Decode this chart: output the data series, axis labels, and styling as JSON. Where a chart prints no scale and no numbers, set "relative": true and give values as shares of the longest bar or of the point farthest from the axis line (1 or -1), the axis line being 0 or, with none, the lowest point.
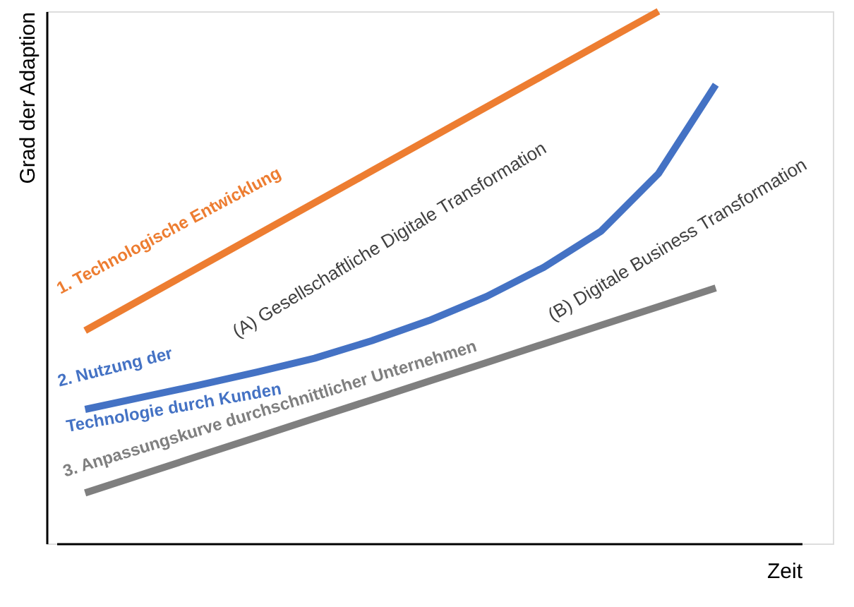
{
  "chart_data": {
    "type": "line",
    "relative": true,
    "xlabel": "Zeit",
    "ylabel": "Grad der Adaption",
    "categories": [
      null,
      null,
      null,
      null,
      null,
      null,
      null,
      null,
      null,
      null,
      null,
      null,
      null
    ],
    "tick_labels": false,
    "grid": false,
    "marker": "none",
    "line_style": "solid",
    "series": [
      {
        "name": "1. Technologische Entwicklung",
        "color": "#ed7d31",
        "values": [
          0.4,
          0.46,
          0.52,
          0.58,
          0.64,
          0.7,
          0.76,
          0.82,
          0.88,
          0.94,
          1.0,
          null,
          null
        ]
      },
      {
        "name": "2. Nutzung der Technologie durch Kunden",
        "color": "#4472c4",
        "values": [
          0.252,
          0.275,
          0.298,
          0.322,
          0.348,
          0.381,
          0.419,
          0.464,
          0.519,
          0.587,
          0.695,
          0.862,
          null
        ]
      },
      {
        "name": "3. Anpassungskurve durchschnittlicher Unternehmen",
        "color": "#7f7f7f",
        "values": [
          0.095,
          0.13,
          0.165,
          0.2,
          0.235,
          0.27,
          0.305,
          0.34,
          0.375,
          0.41,
          0.445,
          0.48,
          null
        ]
      }
    ],
    "annotations": [
      "(A) Gesellschaftliche Digitale Transformation",
      "(B) Digitale Business Transformation"
    ]
  }
}
